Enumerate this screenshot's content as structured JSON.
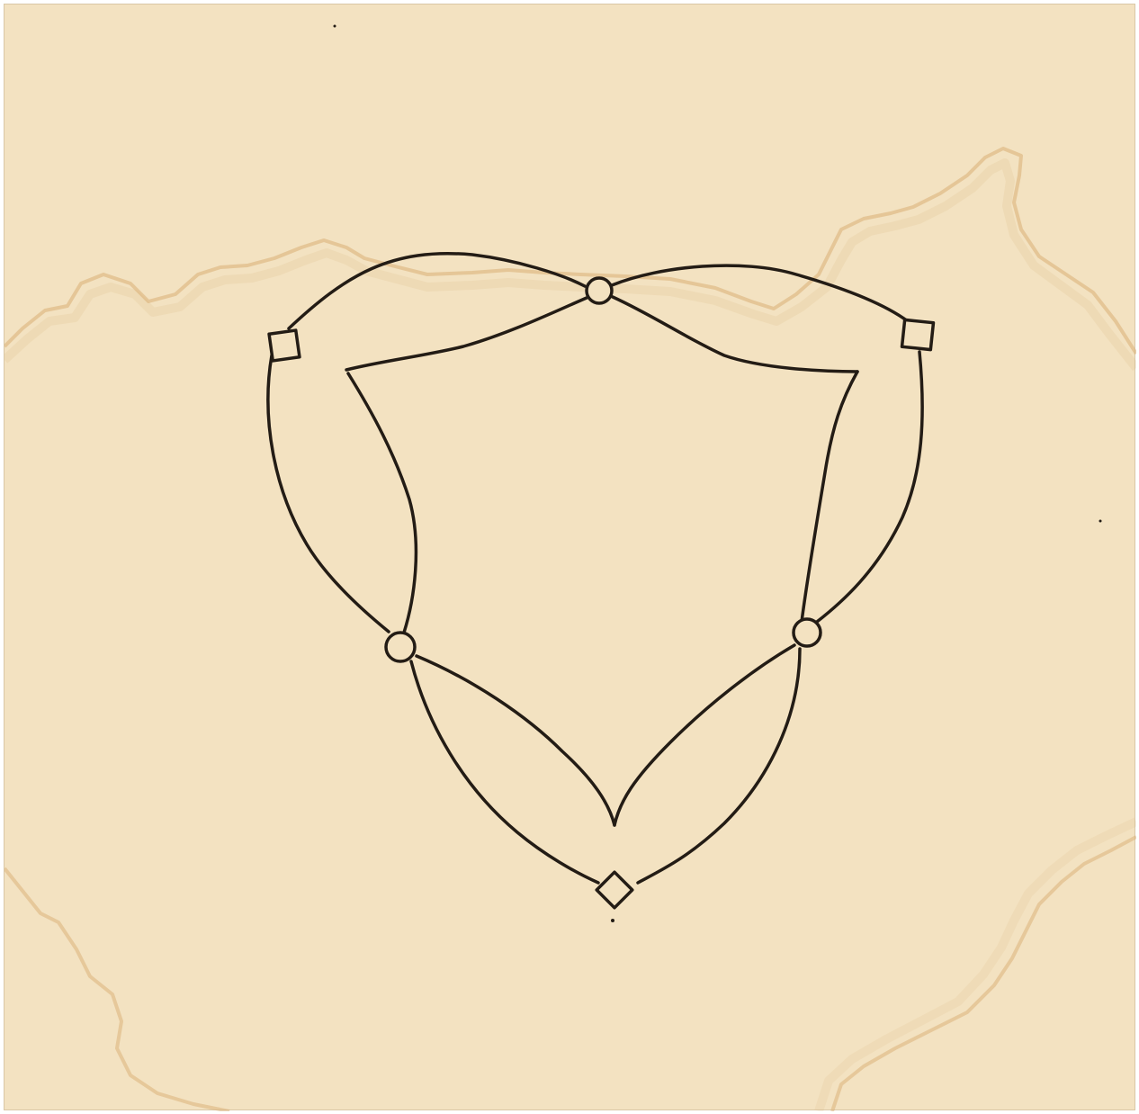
{
  "colors": {
    "paper": "#f3e2c1",
    "stain": "#d9ae74",
    "ink": "#231c15"
  },
  "diagram": {
    "nodes": [
      {
        "id": "top-circle",
        "shape": "circle"
      },
      {
        "id": "left-square",
        "shape": "square"
      },
      {
        "id": "right-square",
        "shape": "square"
      },
      {
        "id": "left-circle",
        "shape": "circle"
      },
      {
        "id": "right-circle",
        "shape": "circle"
      },
      {
        "id": "bottom-diamond",
        "shape": "diamond"
      }
    ],
    "edges": [
      {
        "from": "left-square",
        "to": "top-circle"
      },
      {
        "from": "top-circle",
        "to": "right-square"
      },
      {
        "from": "left-square",
        "to": "left-circle"
      },
      {
        "from": "right-square",
        "to": "right-circle"
      },
      {
        "from": "left-circle",
        "to": "bottom-diamond"
      },
      {
        "from": "right-circle",
        "to": "bottom-diamond"
      }
    ],
    "inner_figure": "curved-shield"
  }
}
